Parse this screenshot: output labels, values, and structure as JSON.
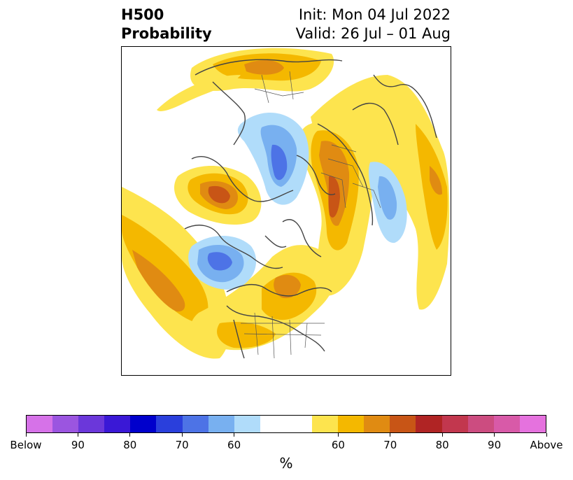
{
  "header": {
    "left_line1": "H500",
    "left_line2": "Probability",
    "right_line1": "Init: Mon 04 Jul 2022",
    "right_line2": "Valid: 26 Jul – 01 Aug"
  },
  "colorbar": {
    "below_colors": [
      "#d672e8",
      "#9b55e0",
      "#6b37da",
      "#3a18d6",
      "#0000cc",
      "#2a3fdc",
      "#4d73e6",
      "#78b0f0",
      "#b0dcfa"
    ],
    "neutral_color": "#ffffff",
    "above_colors": [
      "#fde44e",
      "#f4b800",
      "#e08b12",
      "#c85516",
      "#b02424",
      "#c2374e",
      "#cc4c80",
      "#d85aa8",
      "#e572de"
    ],
    "labels": [
      "Below",
      "90",
      "80",
      "70",
      "60",
      "60",
      "70",
      "80",
      "90",
      "Above"
    ],
    "unit": "%"
  }
}
